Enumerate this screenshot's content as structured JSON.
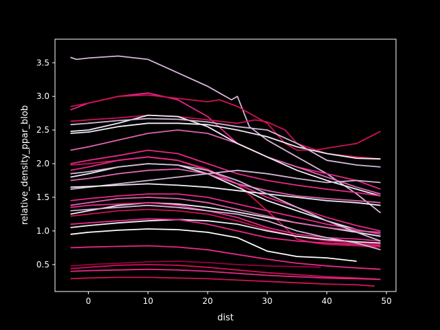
{
  "chart_data": {
    "type": "line",
    "xlabel": "dist",
    "ylabel": "relative_density_ppar_blob",
    "xlim": [
      -5.6,
      51.6
    ],
    "ylim": [
      0.1,
      3.85
    ],
    "xticks": [
      0,
      10,
      20,
      30,
      40,
      50
    ],
    "yticks": [
      0.5,
      1.0,
      1.5,
      2.0,
      2.5,
      3.0,
      3.5
    ],
    "xtick_labels": [
      "0",
      "10",
      "20",
      "30",
      "40",
      "50"
    ],
    "ytick_labels": [
      "0.5",
      "1.0",
      "1.5",
      "2.0",
      "2.5",
      "3.0",
      "3.5"
    ],
    "grid": false,
    "legend": false,
    "background": "#000000",
    "foreground": "#ffffff",
    "series": [
      {
        "color": "#d7b5d8",
        "x": [
          -3,
          -2,
          0,
          5,
          10,
          15,
          20,
          22,
          24,
          25,
          27,
          30,
          35,
          40,
          45,
          49
        ],
        "y": [
          3.58,
          3.55,
          3.57,
          3.6,
          3.55,
          3.35,
          3.15,
          3.05,
          2.95,
          3.0,
          2.55,
          2.35,
          2.1,
          1.85,
          1.55,
          1.27
        ]
      },
      {
        "color": "#e7298a",
        "x": [
          -3,
          0,
          5,
          10,
          15,
          20,
          25,
          30,
          35,
          40,
          45,
          49
        ],
        "y": [
          2.8,
          2.9,
          3.0,
          3.05,
          2.95,
          2.7,
          2.3,
          2.1,
          1.95,
          1.85,
          1.75,
          1.62
        ]
      },
      {
        "color": "#ce1256",
        "x": [
          -3,
          0,
          5,
          10,
          15,
          20,
          22,
          25,
          30,
          33,
          35,
          38,
          40,
          45,
          49
        ],
        "y": [
          2.85,
          2.9,
          3.0,
          3.02,
          2.97,
          2.92,
          2.95,
          2.85,
          2.6,
          2.3,
          2.2,
          2.2,
          2.23,
          2.3,
          2.48
        ]
      },
      {
        "color": "#df65b0",
        "x": [
          -3,
          0,
          5,
          10,
          15,
          20,
          25,
          30,
          35,
          40,
          45,
          49
        ],
        "y": [
          2.2,
          2.25,
          2.35,
          2.45,
          2.5,
          2.45,
          2.3,
          2.1,
          1.95,
          1.8,
          1.65,
          1.55
        ]
      },
      {
        "color": "#ce1256",
        "x": [
          -3,
          0,
          5,
          10,
          15,
          20,
          25,
          28,
          30,
          33,
          35,
          40,
          45,
          49
        ],
        "y": [
          2.63,
          2.65,
          2.68,
          2.72,
          2.7,
          2.65,
          2.6,
          2.65,
          2.62,
          2.5,
          2.3,
          2.15,
          2.1,
          2.07
        ]
      },
      {
        "color": "#f1eef6",
        "x": [
          -3,
          0,
          5,
          10,
          15,
          20,
          25,
          30,
          35,
          40,
          45,
          49
        ],
        "y": [
          2.48,
          2.5,
          2.6,
          2.72,
          2.7,
          2.55,
          2.3,
          2.1,
          1.9,
          1.75,
          1.62,
          1.52
        ]
      },
      {
        "color": "#f1eef6",
        "x": [
          -3,
          0,
          5,
          10,
          15,
          20,
          25,
          30,
          35,
          40,
          45,
          49
        ],
        "y": [
          2.45,
          2.47,
          2.55,
          2.6,
          2.6,
          2.58,
          2.5,
          2.4,
          2.25,
          2.15,
          2.08,
          2.07
        ]
      },
      {
        "color": "#d4b9da",
        "x": [
          -3,
          0,
          5,
          10,
          15,
          20,
          25,
          30,
          35,
          40,
          45,
          49
        ],
        "y": [
          2.58,
          2.6,
          2.64,
          2.67,
          2.66,
          2.62,
          2.55,
          2.5,
          2.3,
          2.05,
          1.98,
          1.95
        ]
      },
      {
        "color": "#e7298a",
        "x": [
          -3,
          0,
          5,
          10,
          15,
          20,
          25,
          30,
          35,
          40,
          45,
          49
        ],
        "y": [
          2.0,
          2.05,
          2.12,
          2.2,
          2.15,
          2.0,
          1.85,
          1.75,
          1.68,
          1.62,
          1.57,
          1.52
        ]
      },
      {
        "color": "#ce1256",
        "x": [
          -3,
          0,
          5,
          10,
          15,
          20,
          25,
          30,
          33,
          35,
          38,
          40,
          45,
          49
        ],
        "y": [
          1.98,
          2.0,
          2.05,
          2.1,
          2.05,
          1.92,
          1.7,
          1.3,
          1.05,
          0.88,
          0.82,
          0.8,
          0.78,
          0.76
        ]
      },
      {
        "color": "#f1eef6",
        "x": [
          -3,
          0,
          5,
          10,
          15,
          20,
          25,
          30,
          35,
          40,
          45,
          49
        ],
        "y": [
          1.8,
          1.85,
          1.95,
          2.0,
          1.98,
          1.85,
          1.65,
          1.45,
          1.3,
          1.15,
          1.02,
          0.95
        ]
      },
      {
        "color": "#e7298a",
        "x": [
          -3,
          0,
          5,
          10,
          15,
          20,
          25,
          30,
          35,
          40,
          45,
          49
        ],
        "y": [
          1.9,
          1.95,
          2.05,
          2.1,
          2.05,
          1.9,
          1.7,
          1.5,
          1.35,
          1.2,
          1.08,
          1.0
        ]
      },
      {
        "color": "#df65b0",
        "x": [
          -3,
          0,
          5,
          10,
          15,
          20,
          25,
          30,
          35,
          40,
          45,
          49
        ],
        "y": [
          1.75,
          1.78,
          1.85,
          1.9,
          1.92,
          1.85,
          1.7,
          1.6,
          1.52,
          1.48,
          1.45,
          1.42
        ]
      },
      {
        "color": "#d4b9da",
        "x": [
          -3,
          0,
          5,
          10,
          15,
          20,
          25,
          30,
          35,
          40,
          45,
          49
        ],
        "y": [
          1.62,
          1.65,
          1.7,
          1.75,
          1.8,
          1.85,
          1.9,
          1.85,
          1.78,
          1.72,
          1.75,
          1.72
        ]
      },
      {
        "color": "#f1eef6",
        "x": [
          -3,
          0,
          5,
          10,
          15,
          20,
          25,
          30,
          35,
          40,
          45,
          49
        ],
        "y": [
          1.65,
          1.66,
          1.68,
          1.7,
          1.68,
          1.65,
          1.6,
          1.55,
          1.5,
          1.45,
          1.42,
          1.38
        ]
      },
      {
        "color": "#e7298a",
        "x": [
          -3,
          0,
          5,
          10,
          15,
          20,
          25,
          30,
          35,
          40,
          45,
          49
        ],
        "y": [
          1.45,
          1.48,
          1.52,
          1.55,
          1.55,
          1.5,
          1.4,
          1.3,
          1.2,
          1.1,
          1.02,
          0.95
        ]
      },
      {
        "color": "#f1eef6",
        "x": [
          -3,
          0,
          5,
          10,
          15,
          20,
          25,
          30,
          35,
          40,
          45,
          49
        ],
        "y": [
          1.25,
          1.3,
          1.38,
          1.42,
          1.4,
          1.35,
          1.28,
          1.2,
          1.12,
          1.05,
          0.98,
          0.92
        ]
      },
      {
        "color": "#df65b0",
        "x": [
          -3,
          0,
          5,
          10,
          15,
          20,
          25,
          30,
          35,
          40,
          45,
          49
        ],
        "y": [
          1.38,
          1.42,
          1.48,
          1.5,
          1.48,
          1.42,
          1.32,
          1.22,
          1.12,
          1.05,
          1.0,
          0.98
        ]
      },
      {
        "color": "#e7298a",
        "x": [
          -3,
          0,
          5,
          10,
          15,
          20,
          25,
          30,
          35,
          40,
          45,
          49
        ],
        "y": [
          1.35,
          1.38,
          1.4,
          1.42,
          1.38,
          1.3,
          1.2,
          1.05,
          0.95,
          0.9,
          0.88,
          0.85
        ]
      },
      {
        "color": "#ce1256",
        "x": [
          -3,
          0,
          5,
          10,
          15,
          20,
          25,
          30,
          35,
          40,
          45,
          49
        ],
        "y": [
          1.22,
          1.25,
          1.3,
          1.32,
          1.3,
          1.25,
          1.15,
          1.02,
          0.92,
          0.85,
          0.82,
          0.8
        ]
      },
      {
        "color": "#f1eef6",
        "x": [
          -3,
          0,
          5,
          10,
          15,
          20,
          25,
          30,
          35,
          40,
          45,
          49
        ],
        "y": [
          1.05,
          1.08,
          1.12,
          1.15,
          1.17,
          1.15,
          1.1,
          1.0,
          0.92,
          0.87,
          0.84,
          0.82
        ]
      },
      {
        "color": "#ffffff",
        "x": [
          -3,
          0,
          5,
          10,
          15,
          20,
          25,
          30,
          35,
          40,
          45
        ],
        "y": [
          0.95,
          0.98,
          1.01,
          1.03,
          1.02,
          0.98,
          0.9,
          0.7,
          0.62,
          0.6,
          0.55
        ]
      },
      {
        "color": "#e7298a",
        "x": [
          -3,
          0,
          5,
          10,
          15,
          20,
          25,
          30,
          35,
          40,
          45,
          49
        ],
        "y": [
          1.1,
          1.12,
          1.15,
          1.18,
          1.17,
          1.1,
          1.0,
          0.9,
          0.85,
          0.82,
          0.8,
          0.78
        ]
      },
      {
        "color": "#d7b5d8",
        "x": [
          -3,
          0,
          5,
          10,
          15,
          20,
          25,
          30,
          35,
          40,
          45,
          49
        ],
        "y": [
          1.3,
          1.32,
          1.35,
          1.38,
          1.35,
          1.3,
          1.25,
          1.15,
          1.0,
          0.9,
          0.82,
          0.72
        ]
      },
      {
        "color": "#d4b9da",
        "x": [
          -3,
          0,
          5,
          10,
          15,
          20,
          25,
          30,
          35,
          40,
          45,
          49
        ],
        "y": [
          1.85,
          1.88,
          1.95,
          2.0,
          1.98,
          1.9,
          1.75,
          1.55,
          1.35,
          1.15,
          0.98,
          0.85
        ]
      },
      {
        "color": "#e7298a",
        "x": [
          -3,
          0,
          5,
          10,
          15,
          20,
          25,
          30,
          35,
          40,
          45,
          49
        ],
        "y": [
          0.75,
          0.76,
          0.77,
          0.78,
          0.76,
          0.72,
          0.65,
          0.58,
          0.52,
          0.48,
          0.45,
          0.43
        ]
      },
      {
        "color": "#ce1256",
        "x": [
          -3,
          0,
          5,
          10,
          15,
          20,
          25,
          30,
          35,
          40,
          45,
          49
        ],
        "y": [
          0.44,
          0.46,
          0.49,
          0.5,
          0.49,
          0.46,
          0.42,
          0.38,
          0.35,
          0.32,
          0.3,
          0.28
        ]
      },
      {
        "color": "#e7298a",
        "x": [
          -3,
          0,
          5,
          10,
          15,
          20,
          25,
          30,
          35,
          40,
          45,
          49
        ],
        "y": [
          0.4,
          0.41,
          0.42,
          0.43,
          0.42,
          0.4,
          0.37,
          0.34,
          0.32,
          0.3,
          0.29,
          0.28
        ]
      },
      {
        "color": "#ce1256",
        "x": [
          -3,
          0,
          5,
          10,
          15,
          20,
          25,
          30,
          35,
          40,
          45,
          48
        ],
        "y": [
          0.29,
          0.3,
          0.31,
          0.31,
          0.3,
          0.29,
          0.27,
          0.25,
          0.23,
          0.21,
          0.2,
          0.18
        ]
      },
      {
        "color": "#980043",
        "x": [
          -3,
          0,
          5,
          10,
          15,
          20,
          25,
          30,
          35,
          39
        ],
        "y": [
          0.48,
          0.5,
          0.52,
          0.54,
          0.55,
          0.53,
          0.5,
          0.48,
          0.47,
          0.46
        ]
      }
    ]
  }
}
